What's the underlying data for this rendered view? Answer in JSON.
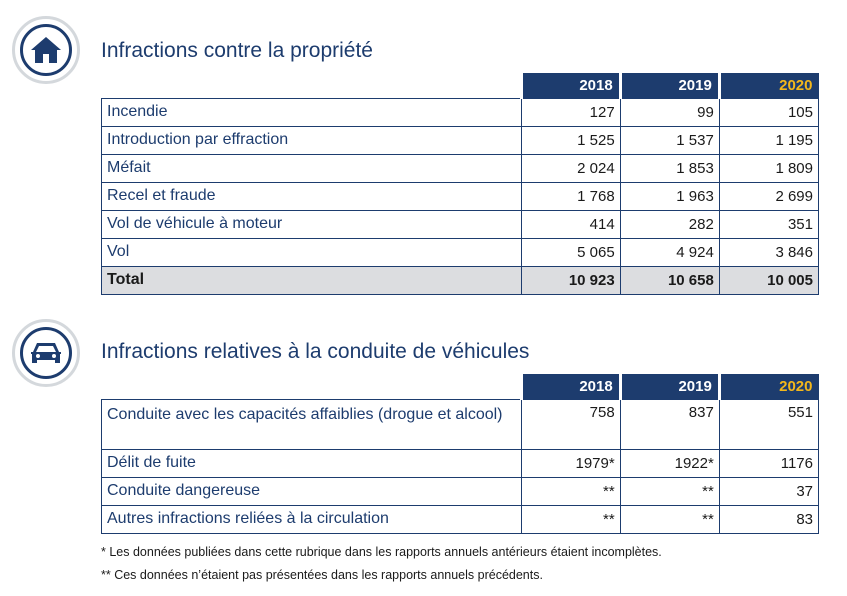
{
  "section1": {
    "title": "Infractions contre la propriété",
    "icon": "house-icon",
    "years": [
      "2018",
      "2019",
      "2020"
    ],
    "rows": [
      {
        "label": "Incendie",
        "values": [
          "127",
          "99",
          "105"
        ]
      },
      {
        "label": "Introduction par effraction",
        "values": [
          "1 525",
          "1 537",
          "1 195"
        ]
      },
      {
        "label": "Méfait",
        "values": [
          "2 024",
          "1 853",
          "1 809"
        ]
      },
      {
        "label": "Recel et fraude",
        "values": [
          "1 768",
          "1 963",
          "2 699"
        ]
      },
      {
        "label": "Vol de véhicule à moteur",
        "values": [
          "414",
          "282",
          "351"
        ]
      },
      {
        "label": "Vol",
        "values": [
          "5 065",
          "4 924",
          "3 846"
        ]
      }
    ],
    "total": {
      "label": "Total",
      "values": [
        "10 923",
        "10 658",
        "10 005"
      ]
    }
  },
  "section2": {
    "title": "Infractions relatives à la conduite de véhicules",
    "icon": "car-icon",
    "years": [
      "2018",
      "2019",
      "2020"
    ],
    "rows": [
      {
        "label": "Conduite avec les capacités affaiblies (drogue et alcool)",
        "values": [
          "758",
          "837",
          "551"
        ]
      },
      {
        "label": "Délit de fuite",
        "values": [
          "1979*",
          "1922*",
          "1176"
        ]
      },
      {
        "label": "Conduite dangereuse",
        "values": [
          "**",
          "**",
          "37"
        ]
      },
      {
        "label": "Autres infractions reliées à la circulation",
        "values": [
          "**",
          "**",
          "83"
        ]
      }
    ]
  },
  "footnotes": [
    "* Les données publiées dans cette rubrique dans les rapports annuels antérieurs étaient incomplètes.",
    "** Ces données n’étaient pas présentées dans les rapports annuels précédents."
  ],
  "colors": {
    "navy": "#1d3c6e",
    "highlight_year": "#f3b71b",
    "total_row": "#dcdde0"
  }
}
